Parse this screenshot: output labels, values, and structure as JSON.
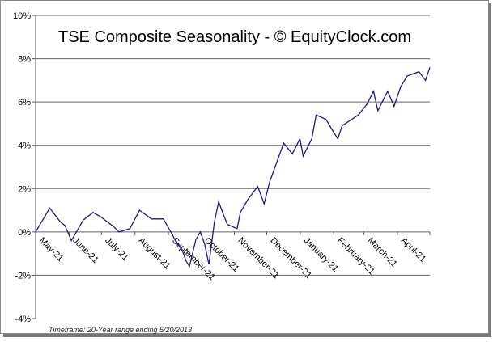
{
  "chart_data": {
    "type": "line",
    "title": "TSE Composite Seasonality - © EquityClock.com",
    "footnote": "Timeframe: 20-Year range ending 5/20/2013",
    "xlabel": "",
    "ylabel": "",
    "ylim": [
      -4,
      10
    ],
    "y_ticks": [
      "-4%",
      "-2%",
      "0%",
      "2%",
      "4%",
      "6%",
      "8%",
      "10%"
    ],
    "y_tick_values": [
      -4,
      -2,
      0,
      2,
      4,
      6,
      8,
      10
    ],
    "x_tick_labels": [
      "May-21",
      "June-21",
      "July-21",
      "August-21",
      "September-21",
      "October-21",
      "November-21",
      "December-21",
      "January-21",
      "February-21",
      "March-21",
      "April-21"
    ],
    "grid": true,
    "line_color": "#1a1a8c",
    "series": [
      {
        "x": [
          "05-01",
          "05-14",
          "05-24",
          "05-28",
          "06-03",
          "06-14",
          "06-23",
          "06-30",
          "07-12",
          "07-17",
          "07-27",
          "08-05",
          "08-16",
          "08-27",
          "08-31",
          "09-04",
          "09-08",
          "09-13",
          "09-17",
          "09-20",
          "09-26",
          "09-30",
          "10-04",
          "10-08",
          "10-13",
          "10-17",
          "10-21",
          "10-25",
          "11-03",
          "11-06",
          "11-13",
          "11-22",
          "11-28",
          "12-03",
          "12-11",
          "12-16",
          "12-24",
          "12-31",
          "01-03",
          "01-11",
          "01-15",
          "01-24",
          "01-30",
          "02-04",
          "02-08",
          "02-23",
          "03-03",
          "03-09",
          "03-13",
          "03-22",
          "03-28",
          "04-03",
          "04-09",
          "04-20",
          "04-26",
          "04-30"
        ],
        "values": [
          0,
          1.1,
          0.45,
          0.3,
          -0.4,
          0.55,
          0.9,
          0.7,
          0.25,
          0.0,
          0.15,
          1.0,
          0.6,
          0.6,
          0.25,
          -0.1,
          -0.5,
          -0.8,
          -1.35,
          -1.6,
          -0.35,
          0.0,
          -0.55,
          -1.5,
          0.45,
          1.4,
          0.85,
          0.35,
          0.15,
          0.9,
          1.5,
          2.1,
          1.3,
          2.3,
          3.4,
          4.1,
          3.6,
          4.3,
          3.5,
          4.3,
          5.4,
          5.2,
          4.7,
          4.3,
          4.9,
          5.4,
          5.9,
          6.5,
          5.6,
          6.5,
          5.8,
          6.7,
          7.2,
          7.4,
          7.0,
          7.6
        ]
      }
    ]
  }
}
